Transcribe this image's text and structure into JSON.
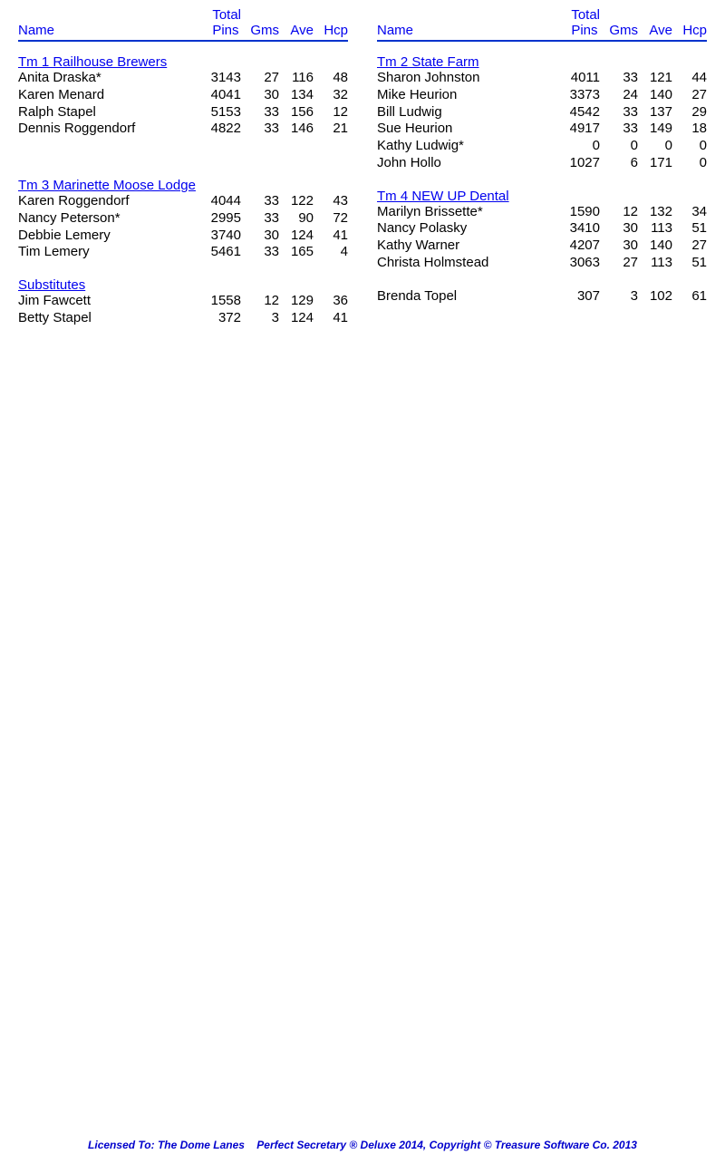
{
  "colors": {
    "link": "#0000ee",
    "rule": "#0033cc",
    "text": "#000000",
    "background": "#ffffff",
    "footer": "#0000cc"
  },
  "typography": {
    "body_fontsize": 15,
    "footer_fontsize": 12,
    "font_family": "Arial"
  },
  "header": {
    "name": "Name",
    "total": "Total",
    "pins": "Pins",
    "gms": "Gms",
    "ave": "Ave",
    "hcp": "Hcp"
  },
  "left": {
    "sections": [
      {
        "title": "Tm 1 Railhouse Brewers",
        "players": [
          {
            "name": "Anita Draska*",
            "pins": "3143",
            "gms": "27",
            "ave": "116",
            "hcp": "48"
          },
          {
            "name": "Karen Menard",
            "pins": "4041",
            "gms": "30",
            "ave": "134",
            "hcp": "32"
          },
          {
            "name": "Ralph Stapel",
            "pins": "5153",
            "gms": "33",
            "ave": "156",
            "hcp": "12"
          },
          {
            "name": "Dennis Roggendorf",
            "pins": "4822",
            "gms": "33",
            "ave": "146",
            "hcp": "21"
          }
        ]
      },
      {
        "title": "Tm 3 Marinette Moose Lodge",
        "players": [
          {
            "name": "Karen Roggendorf",
            "pins": "4044",
            "gms": "33",
            "ave": "122",
            "hcp": "43"
          },
          {
            "name": "Nancy Peterson*",
            "pins": "2995",
            "gms": "33",
            "ave": "90",
            "hcp": "72"
          },
          {
            "name": "Debbie Lemery",
            "pins": "3740",
            "gms": "30",
            "ave": "124",
            "hcp": "41"
          },
          {
            "name": "Tim Lemery",
            "pins": "5461",
            "gms": "33",
            "ave": "165",
            "hcp": "4"
          }
        ]
      },
      {
        "title": "Substitutes",
        "players": [
          {
            "name": "Jim Fawcett",
            "pins": "1558",
            "gms": "12",
            "ave": "129",
            "hcp": "36"
          },
          {
            "name": "Betty Stapel",
            "pins": "372",
            "gms": "3",
            "ave": "124",
            "hcp": "41"
          }
        ]
      }
    ]
  },
  "right": {
    "sections": [
      {
        "title": "Tm 2 State Farm",
        "players": [
          {
            "name": "Sharon Johnston",
            "pins": "4011",
            "gms": "33",
            "ave": "121",
            "hcp": "44"
          },
          {
            "name": "Mike Heurion",
            "pins": "3373",
            "gms": "24",
            "ave": "140",
            "hcp": "27"
          },
          {
            "name": "Bill Ludwig",
            "pins": "4542",
            "gms": "33",
            "ave": "137",
            "hcp": "29"
          },
          {
            "name": "Sue Heurion",
            "pins": "4917",
            "gms": "33",
            "ave": "149",
            "hcp": "18"
          },
          {
            "name": "Kathy Ludwig*",
            "pins": "0",
            "gms": "0",
            "ave": "0",
            "hcp": "0"
          },
          {
            "name": "John Hollo",
            "pins": "1027",
            "gms": "6",
            "ave": "171",
            "hcp": "0"
          }
        ]
      },
      {
        "title": "Tm 4 NEW UP Dental",
        "players": [
          {
            "name": "Marilyn Brissette*",
            "pins": "1590",
            "gms": "12",
            "ave": "132",
            "hcp": "34"
          },
          {
            "name": "Nancy Polasky",
            "pins": "3410",
            "gms": "30",
            "ave": "113",
            "hcp": "51"
          },
          {
            "name": "Kathy Warner",
            "pins": "4207",
            "gms": "30",
            "ave": "140",
            "hcp": "27"
          },
          {
            "name": "Christa Holmstead",
            "pins": "3063",
            "gms": "27",
            "ave": "113",
            "hcp": "51"
          }
        ]
      },
      {
        "title": "",
        "players": [
          {
            "name": "Brenda Topel",
            "pins": "307",
            "gms": "3",
            "ave": "102",
            "hcp": "61"
          }
        ]
      }
    ]
  },
  "footer": {
    "text": "Licensed To: The Dome Lanes    Perfect Secretary ® Deluxe  2014, Copyright © Treasure Software Co. 2013"
  }
}
